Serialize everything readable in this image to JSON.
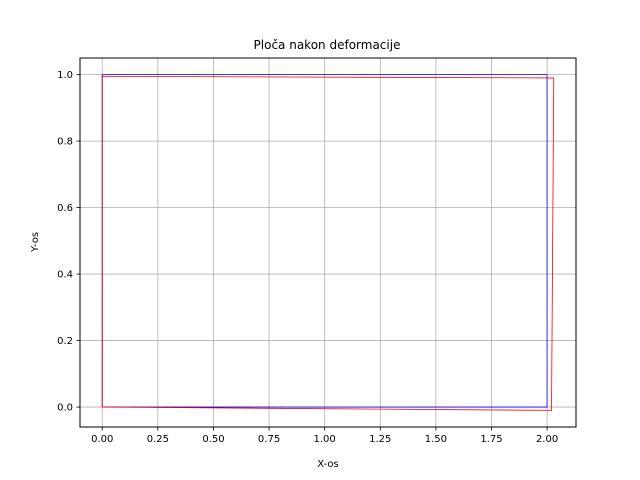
{
  "chart_data": {
    "type": "line",
    "title": "Ploča nakon deformacije",
    "xlabel": "X-os",
    "ylabel": "Y-os",
    "xlim": [
      -0.1,
      2.13
    ],
    "ylim": [
      -0.06,
      1.05
    ],
    "grid": true,
    "x_ticks": [
      0.0,
      0.25,
      0.5,
      0.75,
      1.0,
      1.25,
      1.5,
      1.75,
      2.0
    ],
    "x_tick_labels": [
      "0.00",
      "0.25",
      "0.50",
      "0.75",
      "1.00",
      "1.25",
      "1.50",
      "1.75",
      "2.00"
    ],
    "y_ticks": [
      0.0,
      0.2,
      0.4,
      0.6,
      0.8,
      1.0
    ],
    "y_tick_labels": [
      "0.0",
      "0.2",
      "0.4",
      "0.6",
      "0.8",
      "1.0"
    ],
    "series": [
      {
        "color": "#0000ff",
        "points": [
          [
            0.0,
            0.0
          ],
          [
            2.0,
            0.0
          ],
          [
            2.0,
            1.0
          ],
          [
            0.0,
            1.0
          ],
          [
            0.0,
            0.0
          ]
        ]
      },
      {
        "color": "#ff0000",
        "points": [
          [
            0.0,
            0.0
          ],
          [
            2.02,
            -0.01
          ],
          [
            2.03,
            0.99
          ],
          [
            0.0,
            0.995
          ],
          [
            0.0,
            0.0
          ]
        ]
      }
    ]
  }
}
